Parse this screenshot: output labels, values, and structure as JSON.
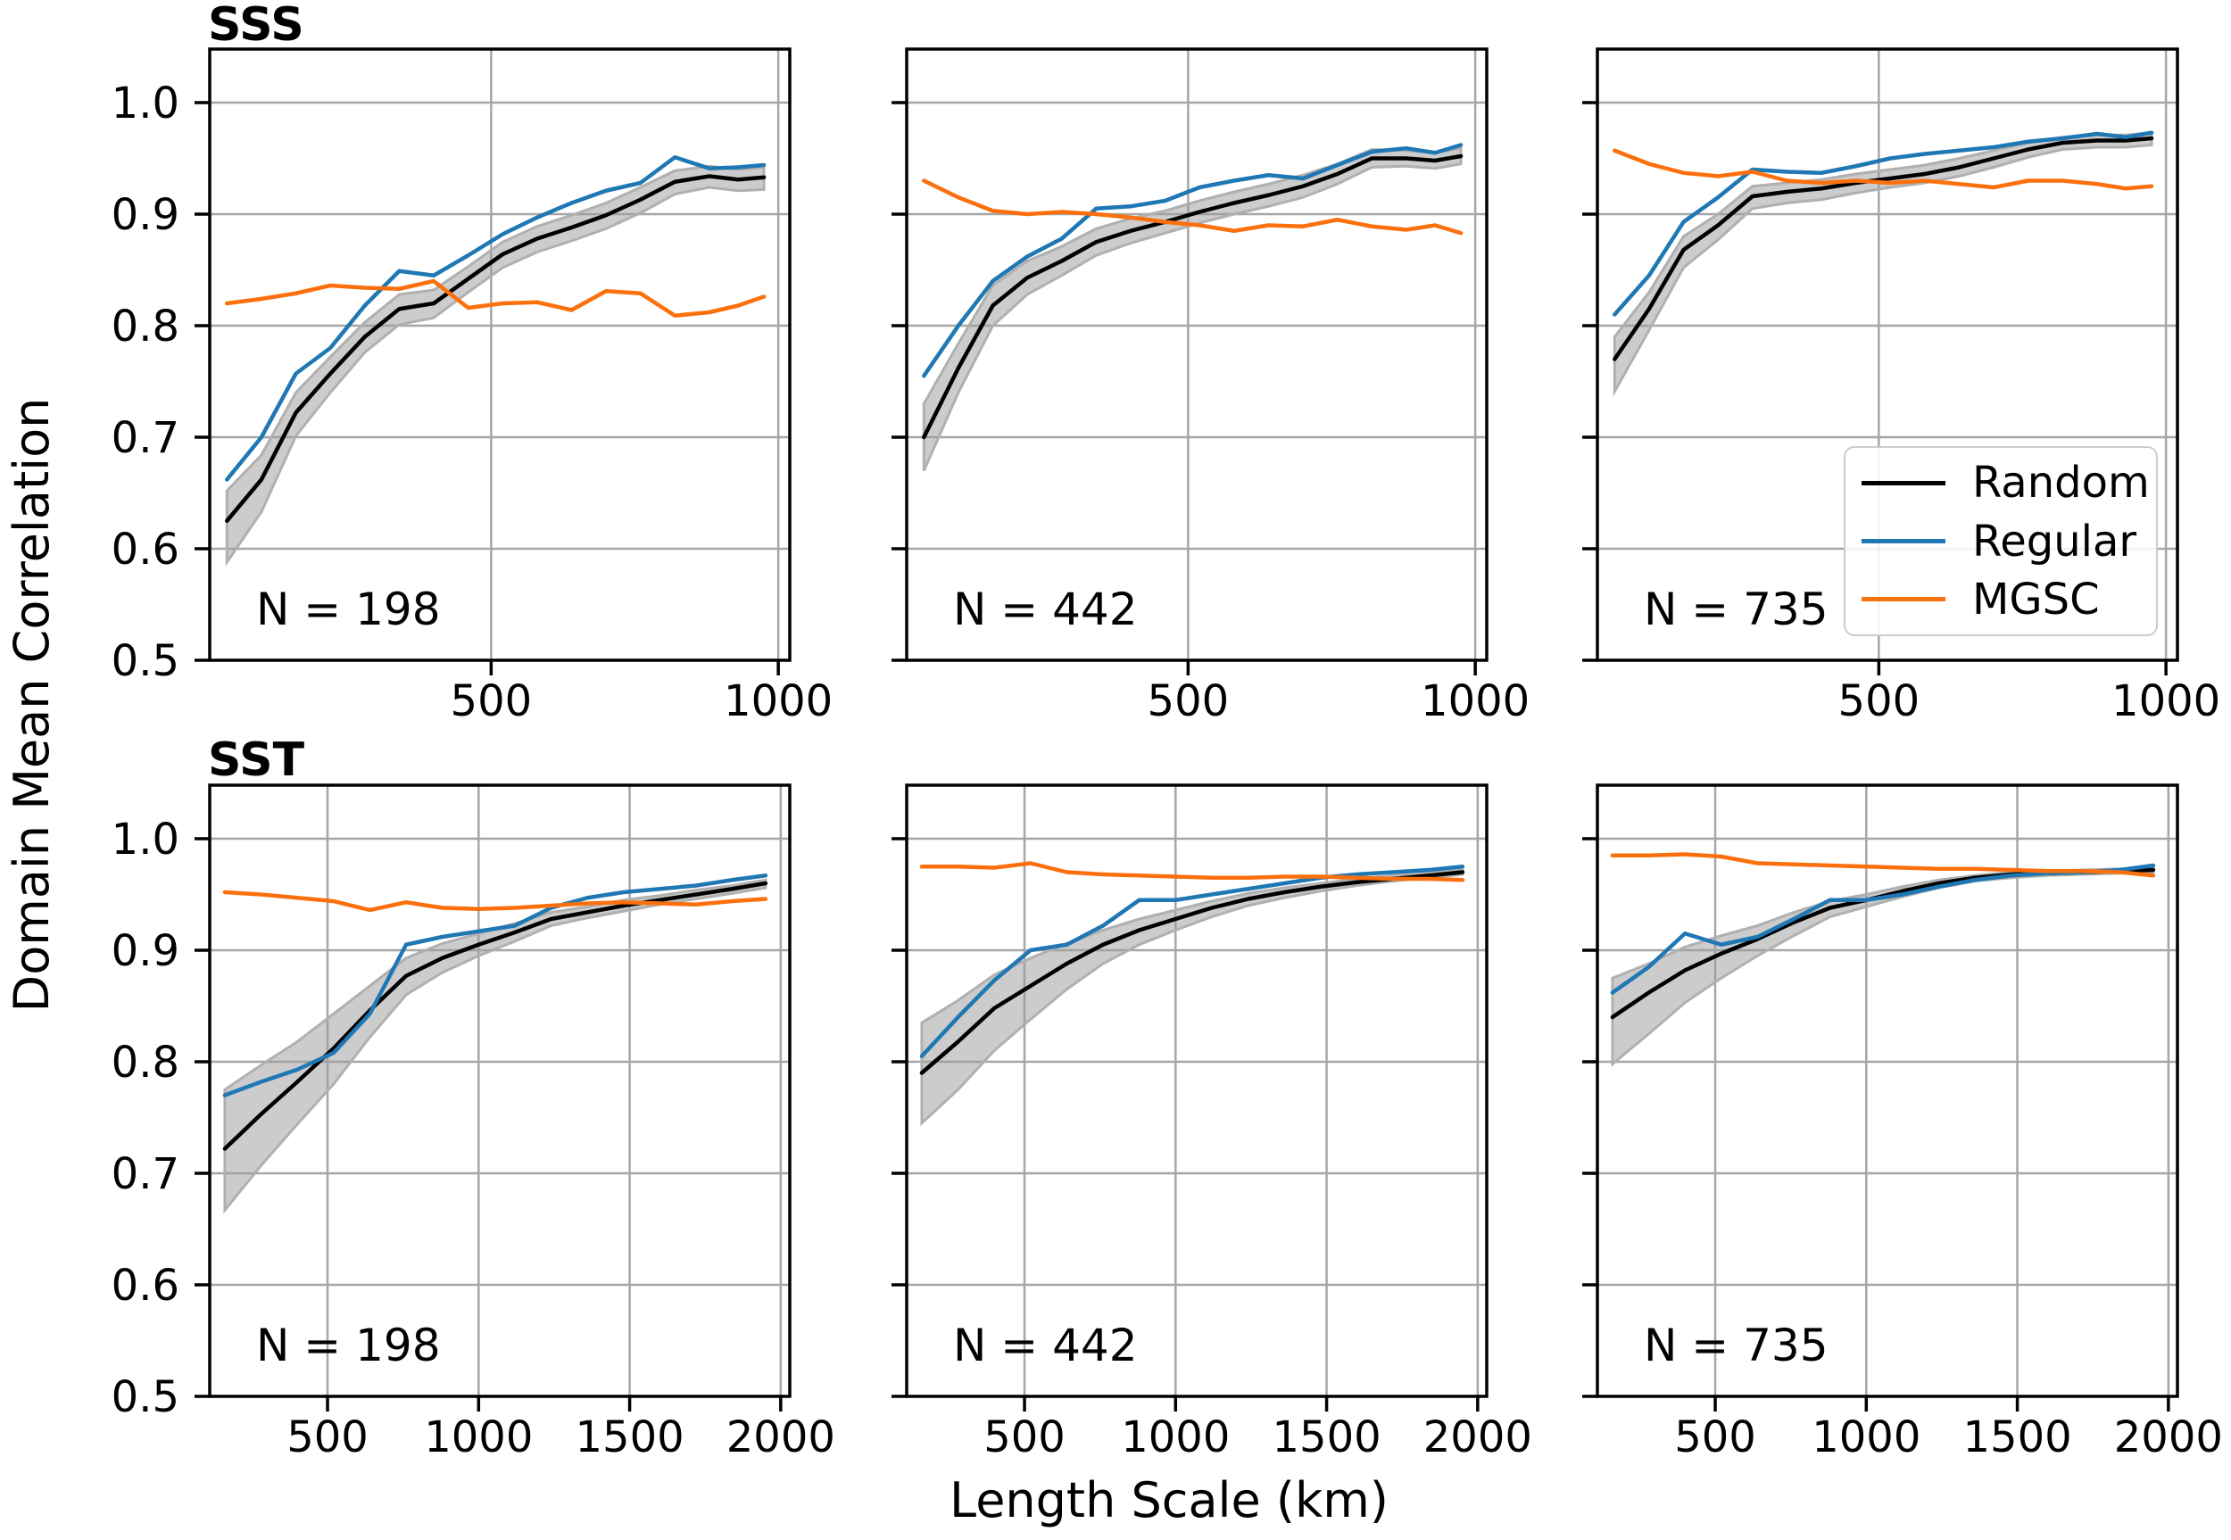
{
  "figure": {
    "ylabel": "Domain Mean Correlation",
    "xlabel": "Length Scale (km)",
    "row_titles": [
      "SSS",
      "SST"
    ],
    "legend": {
      "position": "lower-right-of-top-right-panel",
      "entries": [
        {
          "label": "Random",
          "color": "#000000"
        },
        {
          "label": "Regular",
          "color": "#1f77b4"
        },
        {
          "label": "MGSC",
          "color": "#fb700d"
        }
      ]
    },
    "colors": {
      "background": "#ffffff",
      "grid": "#a6a6a6",
      "spine": "#000000",
      "band_fill": "#999999",
      "band_edge": "#b0b0b0"
    }
  },
  "chart_data": [
    {
      "type": "line",
      "id": "sss-n198",
      "row": 0,
      "col": 0,
      "title": "SSS",
      "n_label": "N = 198",
      "xlim": [
        10,
        1020
      ],
      "ylim": [
        0.5,
        1.048
      ],
      "xticks": [
        500,
        1000
      ],
      "xtick_labels": [
        "500",
        "1000"
      ],
      "yticks": [
        1.0,
        0.9,
        0.8,
        0.7,
        0.6,
        0.5
      ],
      "ytick_labels": [
        "1.0",
        "0.9",
        "0.8",
        "0.7",
        "0.6",
        "0.5"
      ],
      "show_ytick_labels": true,
      "x": [
        40,
        100,
        160,
        220,
        280,
        340,
        400,
        460,
        520,
        580,
        640,
        700,
        760,
        820,
        880,
        930,
        975
      ],
      "series": [
        {
          "name": "Random",
          "color": "#000000",
          "values": [
            0.625,
            0.662,
            0.722,
            0.757,
            0.79,
            0.815,
            0.82,
            0.842,
            0.864,
            0.878,
            0.888,
            0.899,
            0.913,
            0.929,
            0.934,
            0.931,
            0.933
          ]
        },
        {
          "name": "Regular",
          "color": "#1f77b4",
          "values": [
            0.662,
            0.7,
            0.757,
            0.78,
            0.818,
            0.849,
            0.845,
            0.863,
            0.882,
            0.897,
            0.91,
            0.921,
            0.928,
            0.951,
            0.941,
            0.942,
            0.944
          ]
        },
        {
          "name": "MGSC",
          "color": "#fb700d",
          "values": [
            0.82,
            0.824,
            0.829,
            0.836,
            0.834,
            0.833,
            0.84,
            0.816,
            0.82,
            0.821,
            0.814,
            0.831,
            0.829,
            0.809,
            0.812,
            0.818,
            0.826
          ]
        }
      ],
      "random_ci": {
        "lower": [
          0.588,
          0.633,
          0.701,
          0.74,
          0.776,
          0.801,
          0.807,
          0.83,
          0.852,
          0.866,
          0.876,
          0.887,
          0.901,
          0.918,
          0.924,
          0.921,
          0.922
        ],
        "upper": [
          0.652,
          0.684,
          0.74,
          0.772,
          0.803,
          0.828,
          0.832,
          0.853,
          0.875,
          0.889,
          0.899,
          0.91,
          0.924,
          0.939,
          0.943,
          0.94,
          0.942
        ]
      }
    },
    {
      "type": "line",
      "id": "sss-n442",
      "row": 0,
      "col": 1,
      "n_label": "N = 442",
      "xlim": [
        10,
        1020
      ],
      "ylim": [
        0.5,
        1.048
      ],
      "xticks": [
        500,
        1000
      ],
      "xtick_labels": [
        "500",
        "1000"
      ],
      "yticks": [
        1.0,
        0.9,
        0.8,
        0.7,
        0.6,
        0.5
      ],
      "ytick_labels": [
        "1.0",
        "0.9",
        "0.8",
        "0.7",
        "0.6",
        "0.5"
      ],
      "show_ytick_labels": false,
      "x": [
        40,
        100,
        160,
        220,
        280,
        340,
        400,
        460,
        520,
        580,
        640,
        700,
        760,
        820,
        880,
        930,
        975
      ],
      "series": [
        {
          "name": "Random",
          "color": "#000000",
          "values": [
            0.7,
            0.762,
            0.818,
            0.843,
            0.858,
            0.875,
            0.885,
            0.893,
            0.902,
            0.91,
            0.917,
            0.925,
            0.936,
            0.95,
            0.95,
            0.948,
            0.952
          ]
        },
        {
          "name": "Regular",
          "color": "#1f77b4",
          "values": [
            0.755,
            0.8,
            0.84,
            0.862,
            0.878,
            0.905,
            0.907,
            0.912,
            0.924,
            0.93,
            0.935,
            0.932,
            0.944,
            0.956,
            0.959,
            0.955,
            0.962
          ]
        },
        {
          "name": "MGSC",
          "color": "#fb700d",
          "values": [
            0.93,
            0.915,
            0.903,
            0.9,
            0.902,
            0.9,
            0.897,
            0.893,
            0.89,
            0.885,
            0.89,
            0.889,
            0.895,
            0.889,
            0.886,
            0.89,
            0.883
          ]
        }
      ],
      "random_ci": {
        "lower": [
          0.67,
          0.74,
          0.8,
          0.828,
          0.845,
          0.863,
          0.874,
          0.883,
          0.892,
          0.9,
          0.907,
          0.915,
          0.927,
          0.942,
          0.943,
          0.941,
          0.945
        ],
        "upper": [
          0.73,
          0.784,
          0.836,
          0.858,
          0.871,
          0.887,
          0.896,
          0.903,
          0.912,
          0.92,
          0.927,
          0.935,
          0.945,
          0.958,
          0.957,
          0.955,
          0.959
        ]
      }
    },
    {
      "type": "line",
      "id": "sss-n735",
      "row": 0,
      "col": 2,
      "n_label": "N = 735",
      "xlim": [
        10,
        1020
      ],
      "ylim": [
        0.5,
        1.048
      ],
      "xticks": [
        500,
        1000
      ],
      "xtick_labels": [
        "500",
        "1000"
      ],
      "yticks": [
        1.0,
        0.9,
        0.8,
        0.7,
        0.6,
        0.5
      ],
      "ytick_labels": [
        "1.0",
        "0.9",
        "0.8",
        "0.7",
        "0.6",
        "0.5"
      ],
      "show_ytick_labels": false,
      "x": [
        40,
        100,
        160,
        220,
        280,
        340,
        400,
        460,
        520,
        580,
        640,
        700,
        760,
        820,
        880,
        930,
        975
      ],
      "series": [
        {
          "name": "Random",
          "color": "#000000",
          "values": [
            0.77,
            0.815,
            0.868,
            0.89,
            0.916,
            0.92,
            0.923,
            0.928,
            0.932,
            0.936,
            0.942,
            0.95,
            0.958,
            0.964,
            0.966,
            0.966,
            0.968
          ]
        },
        {
          "name": "Regular",
          "color": "#1f77b4",
          "values": [
            0.81,
            0.845,
            0.893,
            0.915,
            0.94,
            0.938,
            0.937,
            0.943,
            0.95,
            0.954,
            0.957,
            0.96,
            0.965,
            0.968,
            0.972,
            0.969,
            0.973
          ]
        },
        {
          "name": "MGSC",
          "color": "#fb700d",
          "values": [
            0.957,
            0.945,
            0.937,
            0.934,
            0.938,
            0.93,
            0.928,
            0.93,
            0.928,
            0.93,
            0.927,
            0.924,
            0.93,
            0.93,
            0.927,
            0.923,
            0.925
          ]
        }
      ],
      "random_ci": {
        "lower": [
          0.741,
          0.796,
          0.852,
          0.877,
          0.905,
          0.91,
          0.913,
          0.919,
          0.924,
          0.928,
          0.934,
          0.942,
          0.951,
          0.958,
          0.96,
          0.96,
          0.962
        ],
        "upper": [
          0.79,
          0.83,
          0.88,
          0.9,
          0.925,
          0.928,
          0.931,
          0.936,
          0.94,
          0.944,
          0.95,
          0.957,
          0.964,
          0.969,
          0.971,
          0.971,
          0.973
        ]
      }
    },
    {
      "type": "line",
      "id": "sst-n198",
      "row": 1,
      "col": 0,
      "title": "SST",
      "n_label": "N = 198",
      "xlim": [
        110,
        2030
      ],
      "ylim": [
        0.5,
        1.048
      ],
      "xticks": [
        500,
        1000,
        1500,
        2000
      ],
      "xtick_labels": [
        "500",
        "1000",
        "1500",
        "2000"
      ],
      "yticks": [
        1.0,
        0.9,
        0.8,
        0.7,
        0.6,
        0.5
      ],
      "ytick_labels": [
        "1.0",
        "0.9",
        "0.8",
        "0.7",
        "0.6",
        "0.5"
      ],
      "show_ytick_labels": true,
      "x": [
        160,
        280,
        400,
        520,
        640,
        760,
        880,
        1000,
        1120,
        1240,
        1360,
        1480,
        1600,
        1720,
        1840,
        1950
      ],
      "series": [
        {
          "name": "Random",
          "color": "#000000",
          "values": [
            0.722,
            0.753,
            0.782,
            0.812,
            0.846,
            0.877,
            0.893,
            0.905,
            0.916,
            0.928,
            0.934,
            0.94,
            0.945,
            0.95,
            0.955,
            0.96
          ]
        },
        {
          "name": "Regular",
          "color": "#1f77b4",
          "values": [
            0.77,
            0.782,
            0.793,
            0.808,
            0.843,
            0.905,
            0.912,
            0.917,
            0.922,
            0.938,
            0.947,
            0.952,
            0.955,
            0.958,
            0.963,
            0.967
          ]
        },
        {
          "name": "MGSC",
          "color": "#fb700d",
          "values": [
            0.952,
            0.95,
            0.947,
            0.944,
            0.936,
            0.943,
            0.938,
            0.937,
            0.938,
            0.94,
            0.942,
            0.943,
            0.942,
            0.941,
            0.944,
            0.946
          ]
        }
      ],
      "random_ci": {
        "lower": [
          0.667,
          0.707,
          0.744,
          0.78,
          0.822,
          0.86,
          0.88,
          0.895,
          0.908,
          0.922,
          0.929,
          0.935,
          0.941,
          0.946,
          0.951,
          0.956
        ],
        "upper": [
          0.775,
          0.797,
          0.818,
          0.843,
          0.868,
          0.893,
          0.906,
          0.915,
          0.924,
          0.934,
          0.939,
          0.945,
          0.949,
          0.954,
          0.958,
          0.963
        ]
      }
    },
    {
      "type": "line",
      "id": "sst-n442",
      "row": 1,
      "col": 1,
      "n_label": "N = 442",
      "xlim": [
        110,
        2030
      ],
      "ylim": [
        0.5,
        1.048
      ],
      "xticks": [
        500,
        1000,
        1500,
        2000
      ],
      "xtick_labels": [
        "500",
        "1000",
        "1500",
        "2000"
      ],
      "yticks": [
        1.0,
        0.9,
        0.8,
        0.7,
        0.6,
        0.5
      ],
      "ytick_labels": [
        "1.0",
        "0.9",
        "0.8",
        "0.7",
        "0.6",
        "0.5"
      ],
      "show_ytick_labels": false,
      "x": [
        160,
        280,
        400,
        520,
        640,
        760,
        880,
        1000,
        1120,
        1240,
        1360,
        1480,
        1600,
        1720,
        1840,
        1950
      ],
      "series": [
        {
          "name": "Random",
          "color": "#000000",
          "values": [
            0.79,
            0.818,
            0.848,
            0.868,
            0.888,
            0.905,
            0.918,
            0.928,
            0.938,
            0.946,
            0.952,
            0.957,
            0.961,
            0.964,
            0.967,
            0.97
          ]
        },
        {
          "name": "Regular",
          "color": "#1f77b4",
          "values": [
            0.805,
            0.84,
            0.873,
            0.9,
            0.905,
            0.922,
            0.945,
            0.945,
            0.95,
            0.955,
            0.96,
            0.965,
            0.968,
            0.97,
            0.972,
            0.975
          ]
        },
        {
          "name": "MGSC",
          "color": "#fb700d",
          "values": [
            0.975,
            0.975,
            0.974,
            0.978,
            0.97,
            0.968,
            0.967,
            0.966,
            0.965,
            0.965,
            0.966,
            0.966,
            0.965,
            0.964,
            0.964,
            0.963
          ]
        }
      ],
      "random_ci": {
        "lower": [
          0.745,
          0.775,
          0.81,
          0.838,
          0.865,
          0.888,
          0.905,
          0.918,
          0.93,
          0.94,
          0.947,
          0.953,
          0.958,
          0.962,
          0.965,
          0.968
        ],
        "upper": [
          0.835,
          0.855,
          0.878,
          0.893,
          0.906,
          0.918,
          0.928,
          0.936,
          0.944,
          0.951,
          0.956,
          0.96,
          0.964,
          0.967,
          0.969,
          0.972
        ]
      }
    },
    {
      "type": "line",
      "id": "sst-n735",
      "row": 1,
      "col": 2,
      "n_label": "N = 735",
      "xlim": [
        110,
        2030
      ],
      "ylim": [
        0.5,
        1.048
      ],
      "xticks": [
        500,
        1000,
        1500,
        2000
      ],
      "xtick_labels": [
        "500",
        "1000",
        "1500",
        "2000"
      ],
      "yticks": [
        1.0,
        0.9,
        0.8,
        0.7,
        0.6,
        0.5
      ],
      "ytick_labels": [
        "1.0",
        "0.9",
        "0.8",
        "0.7",
        "0.6",
        "0.5"
      ],
      "show_ytick_labels": false,
      "x": [
        160,
        280,
        400,
        520,
        640,
        760,
        880,
        1000,
        1120,
        1240,
        1360,
        1480,
        1600,
        1720,
        1840,
        1950
      ],
      "series": [
        {
          "name": "Random",
          "color": "#000000",
          "values": [
            0.84,
            0.862,
            0.882,
            0.897,
            0.91,
            0.925,
            0.938,
            0.945,
            0.953,
            0.96,
            0.965,
            0.968,
            0.969,
            0.97,
            0.971,
            0.972
          ]
        },
        {
          "name": "Regular",
          "color": "#1f77b4",
          "values": [
            0.862,
            0.885,
            0.915,
            0.905,
            0.912,
            0.928,
            0.945,
            0.945,
            0.95,
            0.957,
            0.963,
            0.967,
            0.969,
            0.97,
            0.972,
            0.976
          ]
        },
        {
          "name": "MGSC",
          "color": "#fb700d",
          "values": [
            0.985,
            0.985,
            0.986,
            0.984,
            0.978,
            0.977,
            0.976,
            0.975,
            0.974,
            0.973,
            0.973,
            0.972,
            0.971,
            0.971,
            0.97,
            0.967
          ]
        }
      ],
      "random_ci": {
        "lower": [
          0.798,
          0.825,
          0.853,
          0.875,
          0.895,
          0.913,
          0.93,
          0.939,
          0.948,
          0.956,
          0.962,
          0.965,
          0.967,
          0.968,
          0.969,
          0.97
        ],
        "upper": [
          0.875,
          0.888,
          0.903,
          0.913,
          0.922,
          0.934,
          0.944,
          0.95,
          0.957,
          0.963,
          0.967,
          0.97,
          0.971,
          0.972,
          0.973,
          0.974
        ]
      }
    }
  ]
}
